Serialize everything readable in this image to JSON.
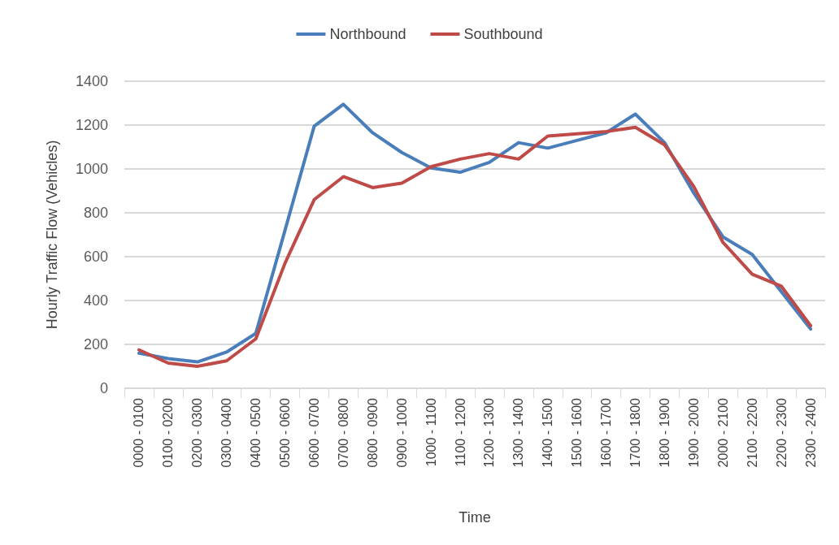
{
  "chart_data": {
    "type": "line",
    "xlabel": "Time",
    "ylabel": "Hourly Traffic Flow (Vehicles)",
    "categories": [
      "0000 - 0100",
      "0100 - 0200",
      "0200 - 0300",
      "0300 - 0400",
      "0400 - 0500",
      "0500 - 0600",
      "0600 - 0700",
      "0700 - 0800",
      "0800 - 0900",
      "0900 - 1000",
      "1000 - 1100",
      "1100 - 1200",
      "1200 - 1300",
      "1300 - 1400",
      "1400 - 1500",
      "1500 - 1600",
      "1600 - 1700",
      "1700 - 1800",
      "1800 - 1900",
      "1900 - 2000",
      "2000 - 2100",
      "2100 - 2200",
      "2200 - 2300",
      "2300 - 2400"
    ],
    "series": [
      {
        "name": "Northbound",
        "color": "#4a7ebb",
        "values": [
          160,
          135,
          120,
          165,
          250,
          720,
          1195,
          1295,
          1165,
          1075,
          1005,
          985,
          1030,
          1120,
          1095,
          1130,
          1165,
          1250,
          1120,
          890,
          690,
          610,
          440,
          270
        ]
      },
      {
        "name": "Southbound",
        "color": "#be4b48",
        "values": [
          175,
          115,
          100,
          125,
          225,
          570,
          860,
          965,
          915,
          935,
          1010,
          1045,
          1070,
          1045,
          1150,
          1160,
          1170,
          1190,
          1110,
          920,
          665,
          520,
          465,
          285
        ]
      }
    ],
    "ylim": [
      0,
      1400
    ],
    "yticks": [
      0,
      200,
      400,
      600,
      800,
      1000,
      1200,
      1400
    ],
    "grid": "y",
    "legend": "top",
    "marker": "none",
    "line_style": "solid"
  }
}
